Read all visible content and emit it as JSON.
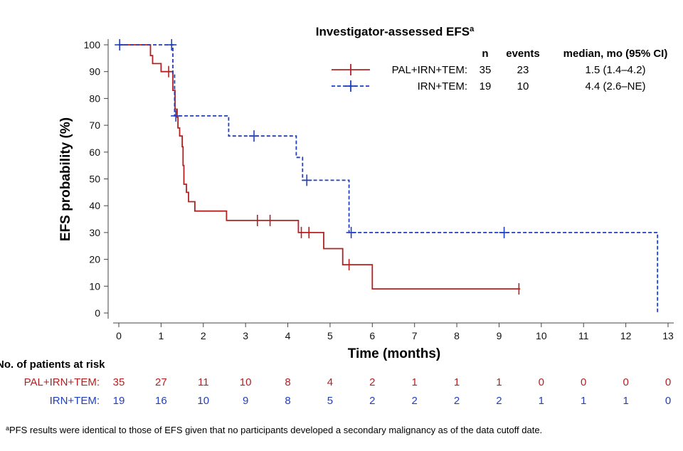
{
  "chart_data": {
    "type": "line",
    "subtype": "kaplan-meier step curves with censor marks",
    "title": "Investigator-assessed EFS",
    "title_superscript": "a",
    "xlabel": "Time (months)",
    "ylabel": "EFS probability (%)",
    "xlim": [
      0,
      13
    ],
    "ylim": [
      0,
      100
    ],
    "xticks": [
      0,
      1,
      2,
      3,
      4,
      5,
      6,
      7,
      8,
      9,
      10,
      11,
      12,
      13
    ],
    "yticks": [
      0,
      10,
      20,
      30,
      40,
      50,
      60,
      70,
      80,
      90,
      100
    ],
    "grid": false,
    "legend_position": "top-right",
    "legend_headers": {
      "n": "n",
      "events": "events",
      "median": "median, mo (95% CI)"
    },
    "series": [
      {
        "name": "PAL+IRN+TEM:",
        "color": "#b22222",
        "line_style": "solid",
        "n": "35",
        "events": "23",
        "median": "1.5 (1.4–4.2)",
        "steps": [
          [
            0,
            100
          ],
          [
            0.75,
            100
          ],
          [
            0.75,
            96
          ],
          [
            0.8,
            96
          ],
          [
            0.8,
            93
          ],
          [
            1.0,
            93
          ],
          [
            1.0,
            90
          ],
          [
            1.28,
            90
          ],
          [
            1.28,
            83
          ],
          [
            1.33,
            83
          ],
          [
            1.33,
            76
          ],
          [
            1.38,
            76
          ],
          [
            1.38,
            73
          ],
          [
            1.4,
            73
          ],
          [
            1.4,
            69
          ],
          [
            1.44,
            69
          ],
          [
            1.44,
            66
          ],
          [
            1.5,
            66
          ],
          [
            1.5,
            62
          ],
          [
            1.52,
            62
          ],
          [
            1.52,
            55
          ],
          [
            1.54,
            55
          ],
          [
            1.54,
            48
          ],
          [
            1.6,
            48
          ],
          [
            1.6,
            45
          ],
          [
            1.65,
            45
          ],
          [
            1.65,
            41.5
          ],
          [
            1.8,
            41.5
          ],
          [
            1.8,
            38
          ],
          [
            2.55,
            38
          ],
          [
            2.55,
            34.5
          ],
          [
            4.25,
            34.5
          ],
          [
            4.25,
            30
          ],
          [
            4.85,
            30
          ],
          [
            4.85,
            24
          ],
          [
            5.3,
            24
          ],
          [
            5.3,
            18
          ],
          [
            6.0,
            18
          ],
          [
            6.0,
            9
          ],
          [
            9.5,
            9
          ]
        ],
        "censored": [
          [
            1.18,
            90
          ],
          [
            3.28,
            34.5
          ],
          [
            3.58,
            34.5
          ],
          [
            4.32,
            30
          ],
          [
            4.5,
            30
          ],
          [
            5.45,
            18
          ],
          [
            9.47,
            9
          ]
        ]
      },
      {
        "name": "IRN+TEM:",
        "color": "#1f3fbf",
        "line_style": "dashed",
        "n": "19",
        "events": "10",
        "median": "4.4 (2.6–NE)",
        "steps": [
          [
            0,
            100
          ],
          [
            1.28,
            100
          ],
          [
            1.28,
            89
          ],
          [
            1.32,
            89
          ],
          [
            1.32,
            73.5
          ],
          [
            2.6,
            73.5
          ],
          [
            2.6,
            66
          ],
          [
            4.2,
            66
          ],
          [
            4.2,
            58
          ],
          [
            4.35,
            58
          ],
          [
            4.35,
            49.5
          ],
          [
            5.45,
            49.5
          ],
          [
            5.45,
            30
          ],
          [
            12.75,
            30
          ],
          [
            12.75,
            0
          ]
        ],
        "censored": [
          [
            0.02,
            100
          ],
          [
            1.25,
            100
          ],
          [
            1.35,
            73.5
          ],
          [
            3.2,
            66
          ],
          [
            4.45,
            49.5
          ],
          [
            5.5,
            30
          ],
          [
            9.12,
            30
          ]
        ]
      }
    ],
    "risk_table": {
      "header": "No. of patients at risk",
      "times": [
        0,
        1,
        2,
        3,
        4,
        5,
        6,
        7,
        8,
        9,
        10,
        11,
        12,
        13
      ],
      "rows": [
        {
          "label": "PAL+IRN+TEM:",
          "color": "#b22222",
          "values": [
            "35",
            "27",
            "11",
            "10",
            "8",
            "4",
            "2",
            "1",
            "1",
            "1",
            "0",
            "0",
            "0",
            "0"
          ]
        },
        {
          "label": "IRN+TEM:",
          "color": "#1f3fbf",
          "values": [
            "19",
            "16",
            "10",
            "9",
            "8",
            "5",
            "2",
            "2",
            "2",
            "2",
            "1",
            "1",
            "1",
            "0"
          ]
        }
      ]
    },
    "footnote_marker": "a",
    "footnote": "PFS results were identical to those of EFS given that no participants developed a secondary malignancy as of the data cutoff date."
  }
}
